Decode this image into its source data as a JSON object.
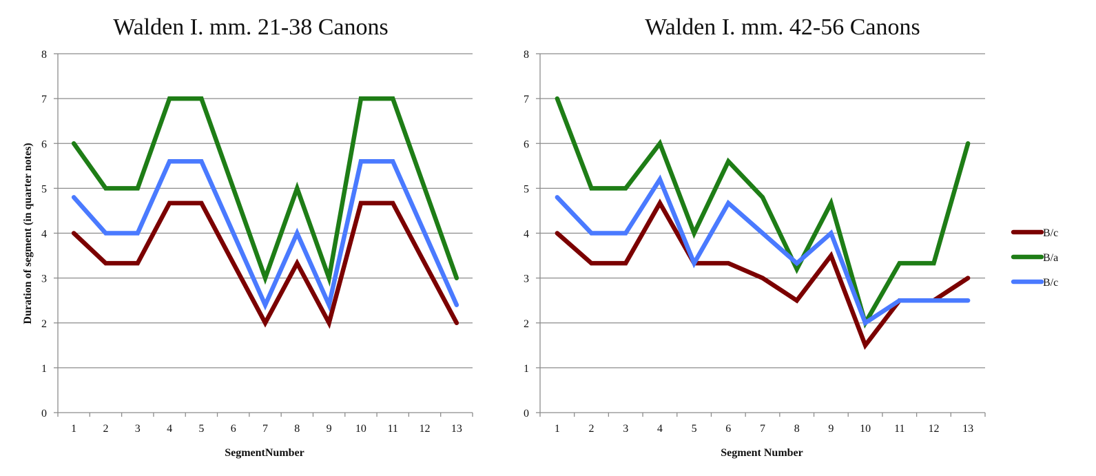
{
  "chart_data": [
    {
      "type": "line",
      "title": "Walden I. mm. 21-38 Canons",
      "xlabel": "SegmentNumber",
      "ylabel": "Duration of segment (in quarter notes)",
      "ylim": [
        0,
        8
      ],
      "yticks": [
        "0",
        "1",
        "2",
        "3",
        "4",
        "5",
        "6",
        "7",
        "8"
      ],
      "grid": true,
      "categories": [
        "1",
        "2",
        "3",
        "4",
        "5",
        "6",
        "7",
        "8",
        "9",
        "10",
        "11",
        "12",
        "13"
      ],
      "series": [
        {
          "name": "B/c",
          "color": "#7b0000",
          "values": [
            4,
            3.33,
            3.33,
            4.67,
            4.67,
            3.33,
            2,
            3.33,
            2,
            4.67,
            4.67,
            3.33,
            2
          ]
        },
        {
          "name": "B/a",
          "color": "#1e7d16",
          "values": [
            6,
            5,
            5,
            7,
            7,
            5,
            3,
            5,
            3,
            7,
            7,
            5,
            3
          ]
        },
        {
          "name": "B/c",
          "color": "#4a7aff",
          "values": [
            4.8,
            4,
            4,
            5.6,
            5.6,
            4,
            2.4,
            4,
            2.4,
            5.6,
            5.6,
            4,
            2.4
          ]
        }
      ]
    },
    {
      "type": "line",
      "title": "Walden I. mm. 42-56 Canons",
      "xlabel": "Segment Number",
      "ylabel": "",
      "ylim": [
        0,
        8
      ],
      "yticks": [
        "0",
        "1",
        "2",
        "3",
        "4",
        "5",
        "6",
        "7",
        "8"
      ],
      "grid": true,
      "legend": "right",
      "categories": [
        "1",
        "2",
        "3",
        "4",
        "5",
        "6",
        "7",
        "8",
        "9",
        "10",
        "11",
        "12",
        "13"
      ],
      "series": [
        {
          "name": "B/c",
          "color": "#7b0000",
          "values": [
            4,
            3.33,
            3.33,
            4.67,
            3.33,
            3.33,
            3,
            2.5,
            3.5,
            1.5,
            2.5,
            2.5,
            3
          ]
        },
        {
          "name": "B/a",
          "color": "#1e7d16",
          "values": [
            7,
            5,
            5,
            6,
            4,
            5.6,
            4.8,
            3.2,
            4.67,
            2,
            3.33,
            3.33,
            6
          ]
        },
        {
          "name": "B/c",
          "color": "#4a7aff",
          "values": [
            4.8,
            4,
            4,
            5.2,
            3.33,
            4.67,
            4,
            3.33,
            4,
            2,
            2.5,
            2.5,
            2.5
          ]
        }
      ]
    }
  ]
}
